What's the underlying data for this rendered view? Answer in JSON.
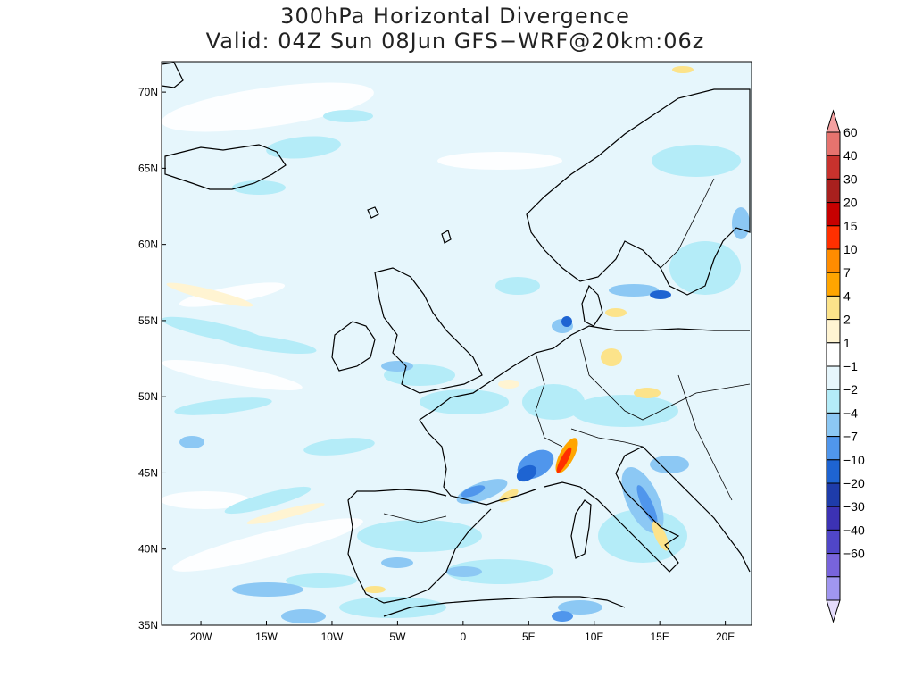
{
  "title": {
    "line1": "300hPa Horizontal Divergence",
    "line2": "Valid: 04Z Sun 08Jun GFS−WRF@20km:06z"
  },
  "map": {
    "lon_range": [
      -23,
      22
    ],
    "lat_range": [
      35,
      72
    ],
    "lat_ticks": [
      {
        "value": 35,
        "label": "35N"
      },
      {
        "value": 40,
        "label": "40N"
      },
      {
        "value": 45,
        "label": "45N"
      },
      {
        "value": 50,
        "label": "50N"
      },
      {
        "value": 55,
        "label": "55N"
      },
      {
        "value": 60,
        "label": "60N"
      },
      {
        "value": 65,
        "label": "65N"
      },
      {
        "value": 70,
        "label": "70N"
      }
    ],
    "lon_ticks": [
      {
        "value": -20,
        "label": "20W"
      },
      {
        "value": -15,
        "label": "15W"
      },
      {
        "value": -10,
        "label": "10W"
      },
      {
        "value": -5,
        "label": "5W"
      },
      {
        "value": 0,
        "label": "0"
      },
      {
        "value": 5,
        "label": "5E"
      },
      {
        "value": 10,
        "label": "10E"
      },
      {
        "value": 15,
        "label": "15E"
      },
      {
        "value": 20,
        "label": "20E"
      }
    ],
    "background_color": "#e6f6fc"
  },
  "colorbar": {
    "top_arrow_color": "#f4a0a0",
    "bottom_arrow_color": "#e4dcfc",
    "boxes": [
      {
        "color": "#e6736e"
      },
      {
        "color": "#c8322d"
      },
      {
        "color": "#a8201e"
      },
      {
        "color": "#c60000"
      },
      {
        "color": "#ff3000"
      },
      {
        "color": "#ff8c00"
      },
      {
        "color": "#ffa500"
      },
      {
        "color": "#fce38a"
      },
      {
        "color": "#fff4d2"
      },
      {
        "color": "#ffffff"
      },
      {
        "color": "#e6f6fc"
      },
      {
        "color": "#b4ecf8"
      },
      {
        "color": "#8cc8f4"
      },
      {
        "color": "#5096ec"
      },
      {
        "color": "#1e64d2"
      },
      {
        "color": "#1e3caa"
      },
      {
        "color": "#3c32b4"
      },
      {
        "color": "#5046c8"
      },
      {
        "color": "#7864dc"
      },
      {
        "color": "#a096f0"
      }
    ],
    "labels": [
      "60",
      "40",
      "30",
      "20",
      "15",
      "10",
      "7",
      "4",
      "2",
      "1",
      "−1",
      "−2",
      "−4",
      "−7",
      "−10",
      "−20",
      "−30",
      "−40",
      "−60"
    ]
  }
}
